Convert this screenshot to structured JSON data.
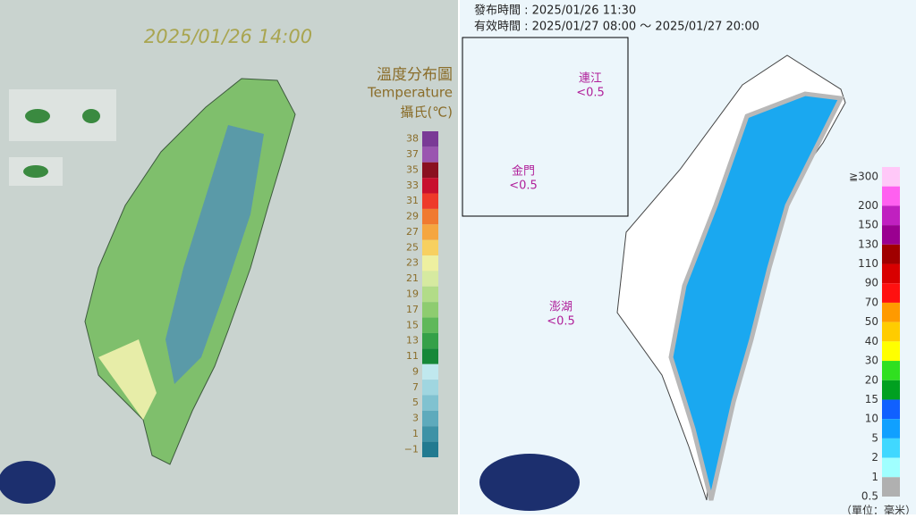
{
  "temperature_map": {
    "timestamp": "2025/01/26 14:00",
    "legend_title": "溫度分布圖",
    "legend_subtitle": "Temperature",
    "legend_unit": "攝氏(℃)",
    "legend": [
      {
        "label": "38",
        "color": "#7a3a96"
      },
      {
        "label": "37",
        "color": "#9a55b0"
      },
      {
        "label": "35",
        "color": "#8a1020"
      },
      {
        "label": "33",
        "color": "#c8102e"
      },
      {
        "label": "31",
        "color": "#ee3a2a"
      },
      {
        "label": "29",
        "color": "#f07a30"
      },
      {
        "label": "27",
        "color": "#f5a640"
      },
      {
        "label": "25",
        "color": "#f7d060"
      },
      {
        "label": "23",
        "color": "#eef0a0"
      },
      {
        "label": "21",
        "color": "#d6eaa0"
      },
      {
        "label": "19",
        "color": "#b2dc88"
      },
      {
        "label": "17",
        "color": "#8ecc70"
      },
      {
        "label": "15",
        "color": "#5fb85a"
      },
      {
        "label": "13",
        "color": "#35a048"
      },
      {
        "label": "11",
        "color": "#168838"
      },
      {
        "label": "9",
        "color": "#c0e8ee"
      },
      {
        "label": "7",
        "color": "#a0d6e0"
      },
      {
        "label": "5",
        "color": "#80c2d0"
      },
      {
        "label": "3",
        "color": "#5eaabc"
      },
      {
        "label": "1",
        "color": "#3e92a6"
      },
      {
        "label": "−1",
        "color": "#227a90"
      }
    ]
  },
  "rainfall_map": {
    "issued": "發布時間 : 2025/01/26 11:30",
    "valid": "有效時間 : 2025/01/27 08:00 ～ 2025/01/27 20:00",
    "places": [
      {
        "name": "連江",
        "value": "<0.5"
      },
      {
        "name": "金門",
        "value": "<0.5"
      },
      {
        "name": "澎湖",
        "value": "<0.5"
      }
    ],
    "legend": [
      {
        "label": "≧300",
        "color": "#ffc8f8"
      },
      {
        "label": "200",
        "color": "#ff60f0"
      },
      {
        "label": "150",
        "color": "#c020c0"
      },
      {
        "label": "130",
        "color": "#9a0090"
      },
      {
        "label": "110",
        "color": "#a00000"
      },
      {
        "label": "90",
        "color": "#d80000"
      },
      {
        "label": "70",
        "color": "#ff1010"
      },
      {
        "label": "50",
        "color": "#ff9a00"
      },
      {
        "label": "40",
        "color": "#ffcc00"
      },
      {
        "label": "30",
        "color": "#ffff00"
      },
      {
        "label": "20",
        "color": "#30e020"
      },
      {
        "label": "15",
        "color": "#00a020"
      },
      {
        "label": "10",
        "color": "#1060ff"
      },
      {
        "label": "5",
        "color": "#10a0ff"
      },
      {
        "label": "2",
        "color": "#40d8ff"
      },
      {
        "label": "1",
        "color": "#a0ffff"
      },
      {
        "label": "0.5",
        "color": "#b0b0b0"
      }
    ],
    "unit": "（單位：毫米）"
  }
}
